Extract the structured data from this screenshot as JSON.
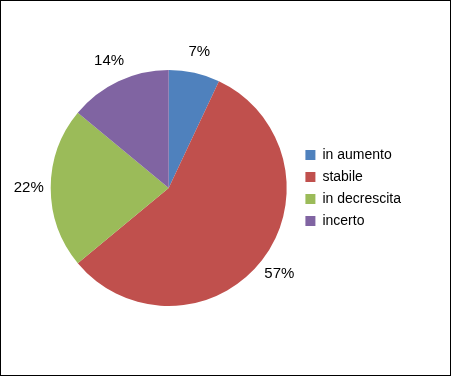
{
  "chart_data": {
    "type": "pie",
    "categories": [
      "in aumento",
      "stabile",
      "in decrescita",
      "incerto"
    ],
    "values": [
      7,
      57,
      22,
      14
    ],
    "value_labels": [
      "7%",
      "57%",
      "22%",
      "14%"
    ],
    "colors": [
      "#4f81bd",
      "#c0504d",
      "#9bbb59",
      "#8064a2"
    ],
    "data_labels": true,
    "legend": "right"
  }
}
